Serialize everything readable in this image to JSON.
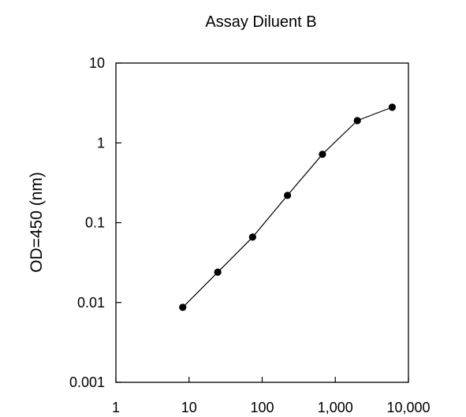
{
  "chart_data": {
    "type": "line",
    "title": "Assay Diluent B",
    "xlabel": "",
    "ylabel": "OD=450 (nm)",
    "x_scale": "log",
    "y_scale": "log",
    "xlim": [
      1,
      10000
    ],
    "ylim": [
      0.001,
      10
    ],
    "x_ticks": [
      1,
      10,
      100,
      1000,
      10000
    ],
    "x_tick_labels": [
      "1",
      "10",
      "100",
      "1,000",
      "10,000"
    ],
    "y_ticks": [
      0.001,
      0.01,
      0.1,
      1,
      10
    ],
    "y_tick_labels": [
      "0.001",
      "0.01",
      "0.1",
      "1",
      "10"
    ],
    "grid": false,
    "legend": "none",
    "series": [
      {
        "color": "#000000",
        "marker": "circle",
        "x": [
          8.2,
          24.7,
          74,
          222,
          667,
          2000,
          6000
        ],
        "y": [
          0.0087,
          0.024,
          0.066,
          0.22,
          0.72,
          1.9,
          2.8
        ]
      }
    ]
  }
}
